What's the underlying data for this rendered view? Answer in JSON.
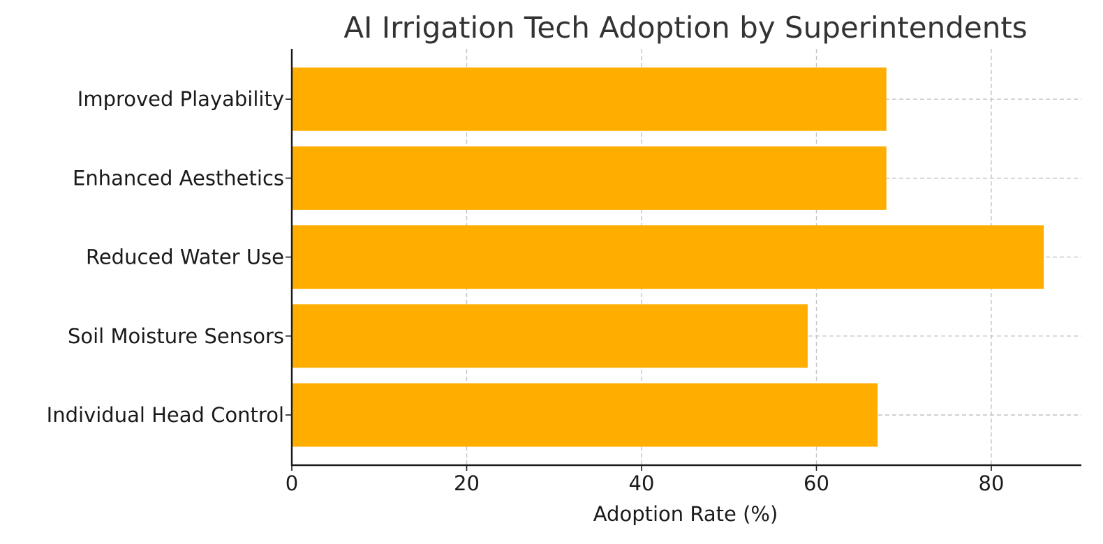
{
  "chart_data": {
    "type": "bar",
    "orientation": "horizontal",
    "title": "AI Irrigation Tech Adoption by Superintendents",
    "xlabel": "Adoption Rate (%)",
    "ylabel": "",
    "categories": [
      "Individual Head Control",
      "Soil Moisture Sensors",
      "Reduced Water Use",
      "Enhanced Aesthetics",
      "Improved Playability"
    ],
    "values": [
      67,
      59,
      86,
      68,
      68
    ],
    "xlim": [
      0,
      90.3
    ],
    "xticks": [
      0,
      20,
      40,
      60,
      80
    ],
    "xtick_labels": [
      "0",
      "20",
      "40",
      "60",
      "80"
    ],
    "grid": true,
    "bar_color": "#FFAE00"
  }
}
